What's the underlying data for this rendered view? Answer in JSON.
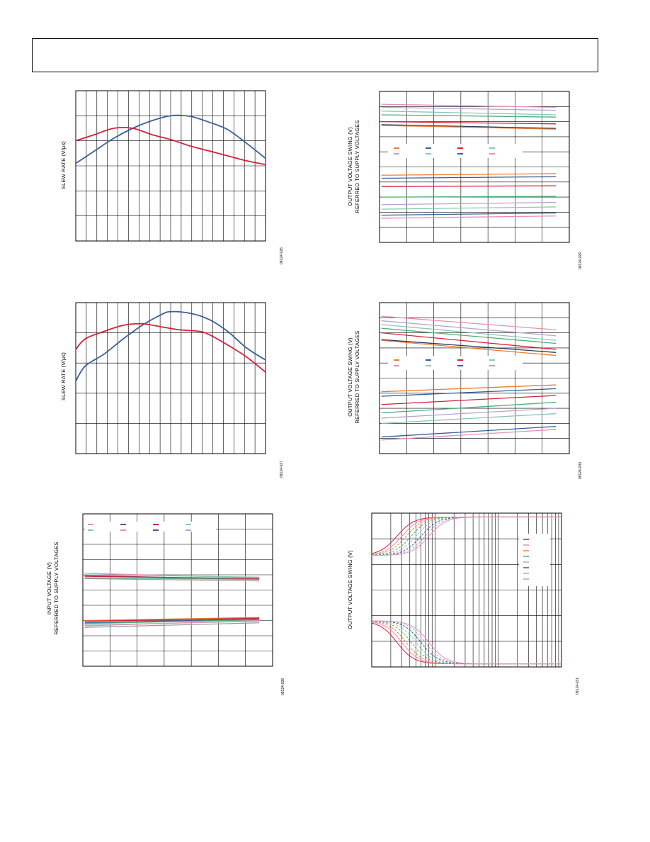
{
  "colors": {
    "red": "#d62039",
    "blue": "#3a5f9a",
    "orange": "#ee7d2e",
    "green": "#4fae7c",
    "lilac": "#b7a2d4",
    "pink": "#e98db4",
    "teal": "#8cc7b4",
    "gray": "#9a9aa6",
    "dark": "#2f3a55"
  },
  "charts": [
    {
      "id": "slew-rate-1",
      "ylabel": "SLEW RATE (V/µs)",
      "fig_id": "09124-026",
      "chart_data": {
        "type": "line",
        "xlabel": "",
        "ylabel": "SLEW RATE (V/µs)",
        "xlim": [
          0,
          20
        ],
        "ylim": [
          0,
          6
        ],
        "grid": true,
        "series": [
          {
            "color": "blue",
            "x": [
              0,
              2,
              4,
              6,
              8,
              10,
              12,
              14,
              16,
              18,
              20
            ],
            "y": [
              3.1,
              3.6,
              4.1,
              4.5,
              4.8,
              5.0,
              4.98,
              4.75,
              4.45,
              3.9,
              3.3
            ]
          },
          {
            "color": "red",
            "x": [
              0,
              2,
              4,
              6,
              8,
              10,
              12,
              14,
              16,
              18,
              20
            ],
            "y": [
              4.0,
              4.25,
              4.5,
              4.5,
              4.25,
              4.05,
              3.8,
              3.6,
              3.4,
              3.2,
              3.05
            ]
          }
        ]
      }
    },
    {
      "id": "output-swing-1",
      "ylabel": "OUTPUT VOLTAGE SWING (V)\nREFERRED TO SUPPLY VOLTAGES",
      "fig_id": "09124-029",
      "chart_data": {
        "type": "line",
        "xlabel": "",
        "ylabel": "OUTPUT VOLTAGE SWING (V) REFERRED TO SUPPLY VOLTAGES",
        "xlim": [
          0,
          7
        ],
        "ylim": [
          -10,
          0
        ],
        "grid": true,
        "legend": "center",
        "series": [
          {
            "color": "pink",
            "y": [
              -0.85,
              -1.05
            ]
          },
          {
            "color": "lilac",
            "y": [
              -1.05,
              -1.25
            ]
          },
          {
            "color": "teal",
            "y": [
              -1.3,
              -1.55
            ]
          },
          {
            "color": "green",
            "y": [
              -1.55,
              -1.7
            ]
          },
          {
            "color": "red",
            "y": [
              -2.0,
              -2.15
            ]
          },
          {
            "color": "dark",
            "y": [
              -2.2,
              -2.45
            ]
          },
          {
            "color": "orange",
            "y": [
              -2.25,
              -2.5
            ]
          },
          {
            "color": "orange",
            "y": [
              -5.55,
              -5.45
            ]
          },
          {
            "color": "blue",
            "y": [
              -5.75,
              -5.65
            ]
          },
          {
            "color": "red",
            "y": [
              -6.3,
              -6.25
            ]
          },
          {
            "color": "green",
            "y": [
              -7.0,
              -6.95
            ]
          },
          {
            "color": "lilac",
            "y": [
              -7.5,
              -7.35
            ]
          },
          {
            "color": "teal",
            "y": [
              -7.8,
              -7.65
            ]
          },
          {
            "color": "blue",
            "y": [
              -8.2,
              -8.05
            ]
          },
          {
            "color": "pink",
            "y": [
              -8.4,
              -8.25
            ]
          }
        ]
      }
    },
    {
      "id": "slew-rate-2",
      "ylabel": "SLEW RATE (V/µs)",
      "fig_id": "09124-027",
      "chart_data": {
        "type": "line",
        "xlabel": "",
        "ylabel": "SLEW RATE (V/µs)",
        "xlim": [
          0,
          20
        ],
        "ylim": [
          0,
          5
        ],
        "grid": true,
        "series": [
          {
            "color": "blue",
            "x": [
              0,
              1,
              3,
              5,
              7,
              9,
              10,
              12,
              14,
              16,
              18,
              20
            ],
            "y": [
              2.4,
              2.9,
              3.3,
              3.8,
              4.25,
              4.6,
              4.7,
              4.65,
              4.45,
              4.05,
              3.5,
              3.1
            ]
          },
          {
            "color": "red",
            "x": [
              0,
              1,
              3,
              5,
              7,
              9,
              11,
              13,
              14,
              16,
              18,
              20
            ],
            "y": [
              3.45,
              3.8,
              4.05,
              4.25,
              4.3,
              4.2,
              4.1,
              4.05,
              3.95,
              3.6,
              3.2,
              2.7
            ]
          }
        ]
      }
    },
    {
      "id": "output-swing-2",
      "ylabel": "OUTPUT VOLTAGE SWING (V)\nREFERRED TO SUPPLY VOLTAGES",
      "fig_id": "09124-030",
      "chart_data": {
        "type": "line",
        "xlabel": "",
        "ylabel": "OUTPUT VOLTAGE SWING (V) REFERRED TO SUPPLY VOLTAGES",
        "xlim": [
          0,
          7
        ],
        "ylim": [
          -10,
          0
        ],
        "grid": true,
        "legend": "center",
        "series": [
          {
            "color": "pink",
            "y": [
              -0.9,
              -1.8
            ]
          },
          {
            "color": "lilac",
            "y": [
              -1.2,
              -2.2
            ]
          },
          {
            "color": "teal",
            "y": [
              -1.45,
              -2.5
            ]
          },
          {
            "color": "green",
            "y": [
              -1.7,
              -2.7
            ]
          },
          {
            "color": "red",
            "y": [
              -2.0,
              -3.1
            ]
          },
          {
            "color": "dark",
            "y": [
              -2.45,
              -3.3
            ]
          },
          {
            "color": "orange",
            "y": [
              -2.5,
              -3.5
            ]
          },
          {
            "color": "orange",
            "y": [
              -5.9,
              -5.45
            ]
          },
          {
            "color": "blue",
            "y": [
              -6.2,
              -5.7
            ]
          },
          {
            "color": "red",
            "y": [
              -6.75,
              -6.15
            ]
          },
          {
            "color": "green",
            "y": [
              -7.3,
              -6.6
            ]
          },
          {
            "color": "lilac",
            "y": [
              -7.65,
              -7.0
            ]
          },
          {
            "color": "teal",
            "y": [
              -8.0,
              -7.35
            ]
          },
          {
            "color": "blue",
            "y": [
              -8.9,
              -8.2
            ]
          },
          {
            "color": "pink",
            "y": [
              -9.1,
              -8.4
            ]
          }
        ]
      }
    },
    {
      "id": "input-voltage",
      "ylabel": "INPUT VOLTAGE (V)\nREFERRED TO SUPPLY VOLTAGES",
      "fig_id": "09124-028",
      "chart_data": {
        "type": "line",
        "xlabel": "",
        "ylabel": "INPUT VOLTAGE (V) REFERRED TO SUPPLY VOLTAGES",
        "xlim": [
          0,
          7
        ],
        "ylim": [
          -10,
          0
        ],
        "grid": true,
        "legend": "top-left",
        "series": [
          {
            "color": "pink",
            "y": [
              -3.9,
              -4.2
            ]
          },
          {
            "color": "teal",
            "y": [
              -4.0,
              -4.15
            ]
          },
          {
            "color": "blue",
            "y": [
              -4.05,
              -4.3
            ]
          },
          {
            "color": "red",
            "y": [
              -4.1,
              -4.25
            ]
          },
          {
            "color": "green",
            "y": [
              -4.2,
              -4.3
            ]
          },
          {
            "color": "gray",
            "y": [
              -4.25,
              -4.4
            ]
          },
          {
            "color": "orange",
            "y": [
              -7.0,
              -6.8
            ]
          },
          {
            "color": "red",
            "y": [
              -7.05,
              -6.85
            ]
          },
          {
            "color": "blue",
            "y": [
              -7.15,
              -6.9
            ]
          },
          {
            "color": "green",
            "y": [
              -7.2,
              -6.95
            ]
          },
          {
            "color": "teal",
            "y": [
              -7.3,
              -7.05
            ]
          },
          {
            "color": "pink",
            "y": [
              -7.35,
              -7.0
            ]
          },
          {
            "color": "gray",
            "y": [
              -7.45,
              -7.15
            ]
          }
        ]
      }
    },
    {
      "id": "output-swing-log",
      "ylabel": "OUTPUT VOLTAGE SWING (V)",
      "fig_id": "09124-031",
      "chart_data": {
        "type": "line",
        "xlabel": "",
        "ylabel": "OUTPUT VOLTAGE SWING (V)",
        "xscale": "log",
        "xlim": [
          1,
          1000
        ],
        "ylim": [
          -10,
          10
        ],
        "grid": true,
        "legend": "right",
        "series": [
          {
            "color": "red",
            "mid": 2.5
          },
          {
            "color": "pink",
            "mid": 3.0
          },
          {
            "color": "orange",
            "mid": 3.5
          },
          {
            "color": "green",
            "mid": 4.2
          },
          {
            "color": "teal",
            "mid": 5.0
          },
          {
            "color": "blue",
            "mid": 6.0
          },
          {
            "color": "lilac",
            "mid": 7.0
          },
          {
            "color": "pink",
            "mid": 8.0
          }
        ]
      }
    }
  ]
}
